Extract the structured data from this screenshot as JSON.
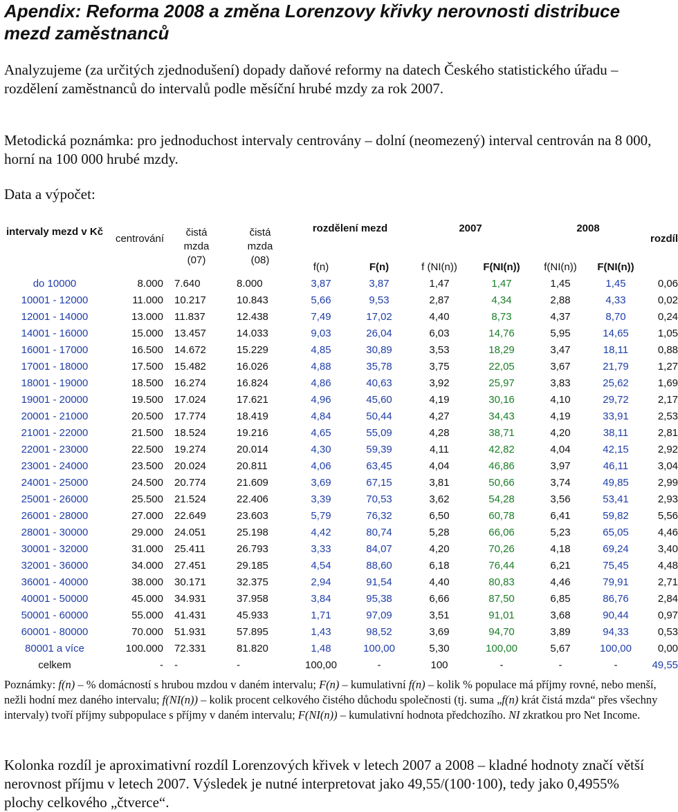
{
  "title": "Apendix: Reforma 2008 a změna Lorenzovy křivky nerovnosti distribuce mezd zaměstnanců",
  "intro": "Analyzujeme (za určitých zjednodušení) dopady daňové reformy na datech Českého statistického úřadu – rozdělení zaměstnanců do intervalů podle měsíční hrubé mzdy za rok 2007.",
  "method_note": "Metodická poznámka: pro jednoduchost intervaly centrovány – dolní (neomezený) interval centrován na 8 000, horní na 100 000 hrubé mzdy.",
  "data_label": "Data a výpočet:",
  "table": {
    "headers": {
      "intervals": "intervaly mezd v Kč",
      "centering": "centrování",
      "net07": "čistá mzda (07)",
      "net08": "čistá mzda (08)",
      "distribution": "rozdělení mezd",
      "y2007": "2007",
      "y2008": "2008",
      "diff": "rozdíl",
      "fn": "f(n)",
      "Fn": "F(n)",
      "fni07": "f (NI(n))",
      "Fni07": "F(NI(n))",
      "fni08": "f(NI(n))",
      "Fni08": "F(NI(n))"
    },
    "rows": [
      [
        "do 10000",
        "8.000",
        "7.640",
        "8.000",
        "3,87",
        "3,87",
        "1,47",
        "1,47",
        "1,45",
        "1,45",
        "0,06"
      ],
      [
        "10001 - 12000",
        "11.000",
        "10.217",
        "10.843",
        "5,66",
        "9,53",
        "2,87",
        "4,34",
        "2,88",
        "4,33",
        "0,02"
      ],
      [
        "12001 - 14000",
        "13.000",
        "11.837",
        "12.438",
        "7,49",
        "17,02",
        "4,40",
        "8,73",
        "4,37",
        "8,70",
        "0,24"
      ],
      [
        "14001 - 16000",
        "15.000",
        "13.457",
        "14.033",
        "9,03",
        "26,04",
        "6,03",
        "14,76",
        "5,95",
        "14,65",
        "1,05"
      ],
      [
        "16001 - 17000",
        "16.500",
        "14.672",
        "15.229",
        "4,85",
        "30,89",
        "3,53",
        "18,29",
        "3,47",
        "18,11",
        "0,88"
      ],
      [
        "17001 - 18000",
        "17.500",
        "15.482",
        "16.026",
        "4,88",
        "35,78",
        "3,75",
        "22,05",
        "3,67",
        "21,79",
        "1,27"
      ],
      [
        "18001 - 19000",
        "18.500",
        "16.274",
        "16.824",
        "4,86",
        "40,63",
        "3,92",
        "25,97",
        "3,83",
        "25,62",
        "1,69"
      ],
      [
        "19001 - 20000",
        "19.500",
        "17.024",
        "17.621",
        "4,96",
        "45,60",
        "4,19",
        "30,16",
        "4,10",
        "29,72",
        "2,17"
      ],
      [
        "20001 - 21000",
        "20.500",
        "17.774",
        "18.419",
        "4,84",
        "50,44",
        "4,27",
        "34,43",
        "4,19",
        "33,91",
        "2,53"
      ],
      [
        "21001 - 22000",
        "21.500",
        "18.524",
        "19.216",
        "4,65",
        "55,09",
        "4,28",
        "38,71",
        "4,20",
        "38,11",
        "2,81"
      ],
      [
        "22001 - 23000",
        "22.500",
        "19.274",
        "20.014",
        "4,30",
        "59,39",
        "4,11",
        "42,82",
        "4,04",
        "42,15",
        "2,92"
      ],
      [
        "23001 - 24000",
        "23.500",
        "20.024",
        "20.811",
        "4,06",
        "63,45",
        "4,04",
        "46,86",
        "3,97",
        "46,11",
        "3,04"
      ],
      [
        "24001 - 25000",
        "24.500",
        "20.774",
        "21.609",
        "3,69",
        "67,15",
        "3,81",
        "50,66",
        "3,74",
        "49,85",
        "2,99"
      ],
      [
        "25001 - 26000",
        "25.500",
        "21.524",
        "22.406",
        "3,39",
        "70,53",
        "3,62",
        "54,28",
        "3,56",
        "53,41",
        "2,93"
      ],
      [
        "26001 - 28000",
        "27.000",
        "22.649",
        "23.603",
        "5,79",
        "76,32",
        "6,50",
        "60,78",
        "6,41",
        "59,82",
        "5,56"
      ],
      [
        "28001 - 30000",
        "29.000",
        "24.051",
        "25.198",
        "4,42",
        "80,74",
        "5,28",
        "66,06",
        "5,23",
        "65,05",
        "4,46"
      ],
      [
        "30001 - 32000",
        "31.000",
        "25.411",
        "26.793",
        "3,33",
        "84,07",
        "4,20",
        "70,26",
        "4,18",
        "69,24",
        "3,40"
      ],
      [
        "32001 - 36000",
        "34.000",
        "27.451",
        "29.185",
        "4,54",
        "88,60",
        "6,18",
        "76,44",
        "6,21",
        "75,45",
        "4,48"
      ],
      [
        "36001 - 40000",
        "38.000",
        "30.171",
        "32.375",
        "2,94",
        "91,54",
        "4,40",
        "80,83",
        "4,46",
        "79,91",
        "2,71"
      ],
      [
        "40001 - 50000",
        "45.000",
        "34.931",
        "37.958",
        "3,84",
        "95,38",
        "6,66",
        "87,50",
        "6,85",
        "86,76",
        "2,84"
      ],
      [
        "50001 - 60000",
        "55.000",
        "41.431",
        "45.933",
        "1,71",
        "97,09",
        "3,51",
        "91,01",
        "3,68",
        "90,44",
        "0,97"
      ],
      [
        "60001 - 80000",
        "70.000",
        "51.931",
        "57.895",
        "1,43",
        "98,52",
        "3,69",
        "94,70",
        "3,89",
        "94,33",
        "0,53"
      ],
      [
        "80001 a více",
        "100.000",
        "72.331",
        "81.820",
        "1,48",
        "100,00",
        "5,30",
        "100,00",
        "5,67",
        "100,00",
        "0,00"
      ],
      [
        "celkem",
        "-",
        "-",
        "-",
        "100,00",
        "-",
        "100",
        "-",
        "-",
        "-",
        "49,55"
      ]
    ]
  },
  "notes": {
    "p1": "Poznámky: ",
    "fn": "f(n)",
    "p2": " – % domácností s hrubou mzdou v daném intervalu; ",
    "Fn": "F(n)",
    "p3": " – kumulativní ",
    "fn2": "f(n)",
    "p4": " – kolik % populace má příjmy rovné, nebo menší, nežli hodní mez daného intervalu; ",
    "fni": "f(NI(n))",
    "p5": " – kolik procent celkového čistého důchodu společnosti (tj. suma „",
    "fn3": "f(n)",
    "p6": " krát čistá mzda“ přes všechny intervaly) tvoří příjmy subpopulace s příjmy v daném intervalu; ",
    "Fni": "F(NI(n))",
    "p7": " – kumulativní hodnota předchozího. ",
    "NI": "NI",
    "p8": " zkratkou pro Net Income."
  },
  "conclusion": "Kolonka rozdíl je aproximativní rozdíl Lorenzových křivek v letech 2007 a 2008 – kladné hodnoty značí větší nerovnost příjmu v letech 2007. Výsledek je nutné interpretovat jako 49,55/(100·100), tedy jako 0,4955% plochy celkového „čtverce“.",
  "colors": {
    "blue": "#1f3ea8",
    "green": "#1b7e28"
  }
}
